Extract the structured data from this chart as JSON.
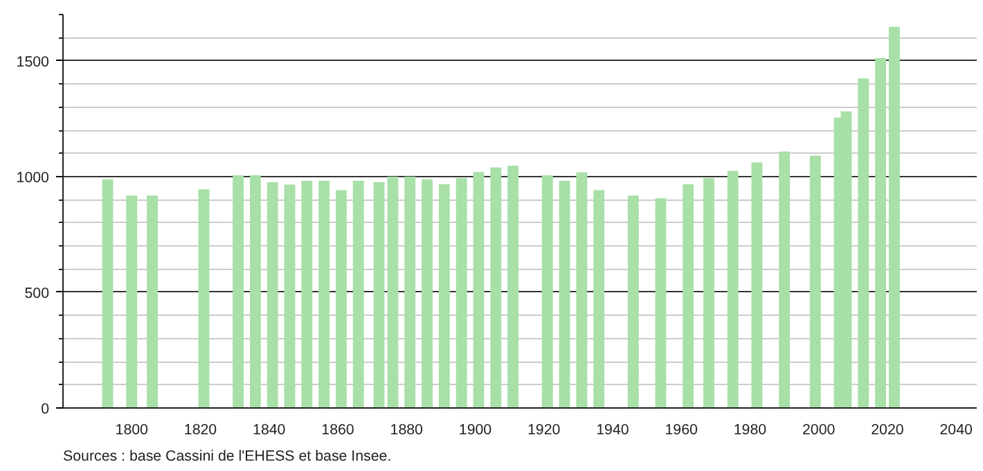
{
  "chart_data": {
    "type": "bar",
    "x": [
      1793,
      1800,
      1806,
      1821,
      1831,
      1836,
      1841,
      1846,
      1851,
      1856,
      1861,
      1866,
      1872,
      1876,
      1881,
      1886,
      1891,
      1896,
      1901,
      1906,
      1911,
      1921,
      1926,
      1931,
      1936,
      1946,
      1954,
      1962,
      1968,
      1975,
      1982,
      1990,
      1999,
      2006,
      2008,
      2013,
      2018,
      2022
    ],
    "values": [
      988,
      918,
      918,
      945,
      1006,
      1006,
      976,
      965,
      982,
      982,
      941,
      982,
      976,
      1000,
      1000,
      988,
      967,
      994,
      1020,
      1039,
      1047,
      1006,
      982,
      1018,
      941,
      918,
      906,
      967,
      994,
      1024,
      1061,
      1108,
      1090,
      1255,
      1282,
      1424,
      1512,
      1647
    ],
    "color": "#a8e0a8",
    "xlim": [
      1780,
      2046
    ],
    "xticks": [
      1800,
      1820,
      1840,
      1860,
      1880,
      1900,
      1920,
      1940,
      1960,
      1980,
      2000,
      2020,
      2040
    ],
    "ylim": [
      0,
      1700
    ],
    "yticks": [
      0,
      500,
      1000,
      1500
    ],
    "grid": "y",
    "annotations": [
      "Sources : base Cassini de l'EHESS et base Insee."
    ]
  }
}
